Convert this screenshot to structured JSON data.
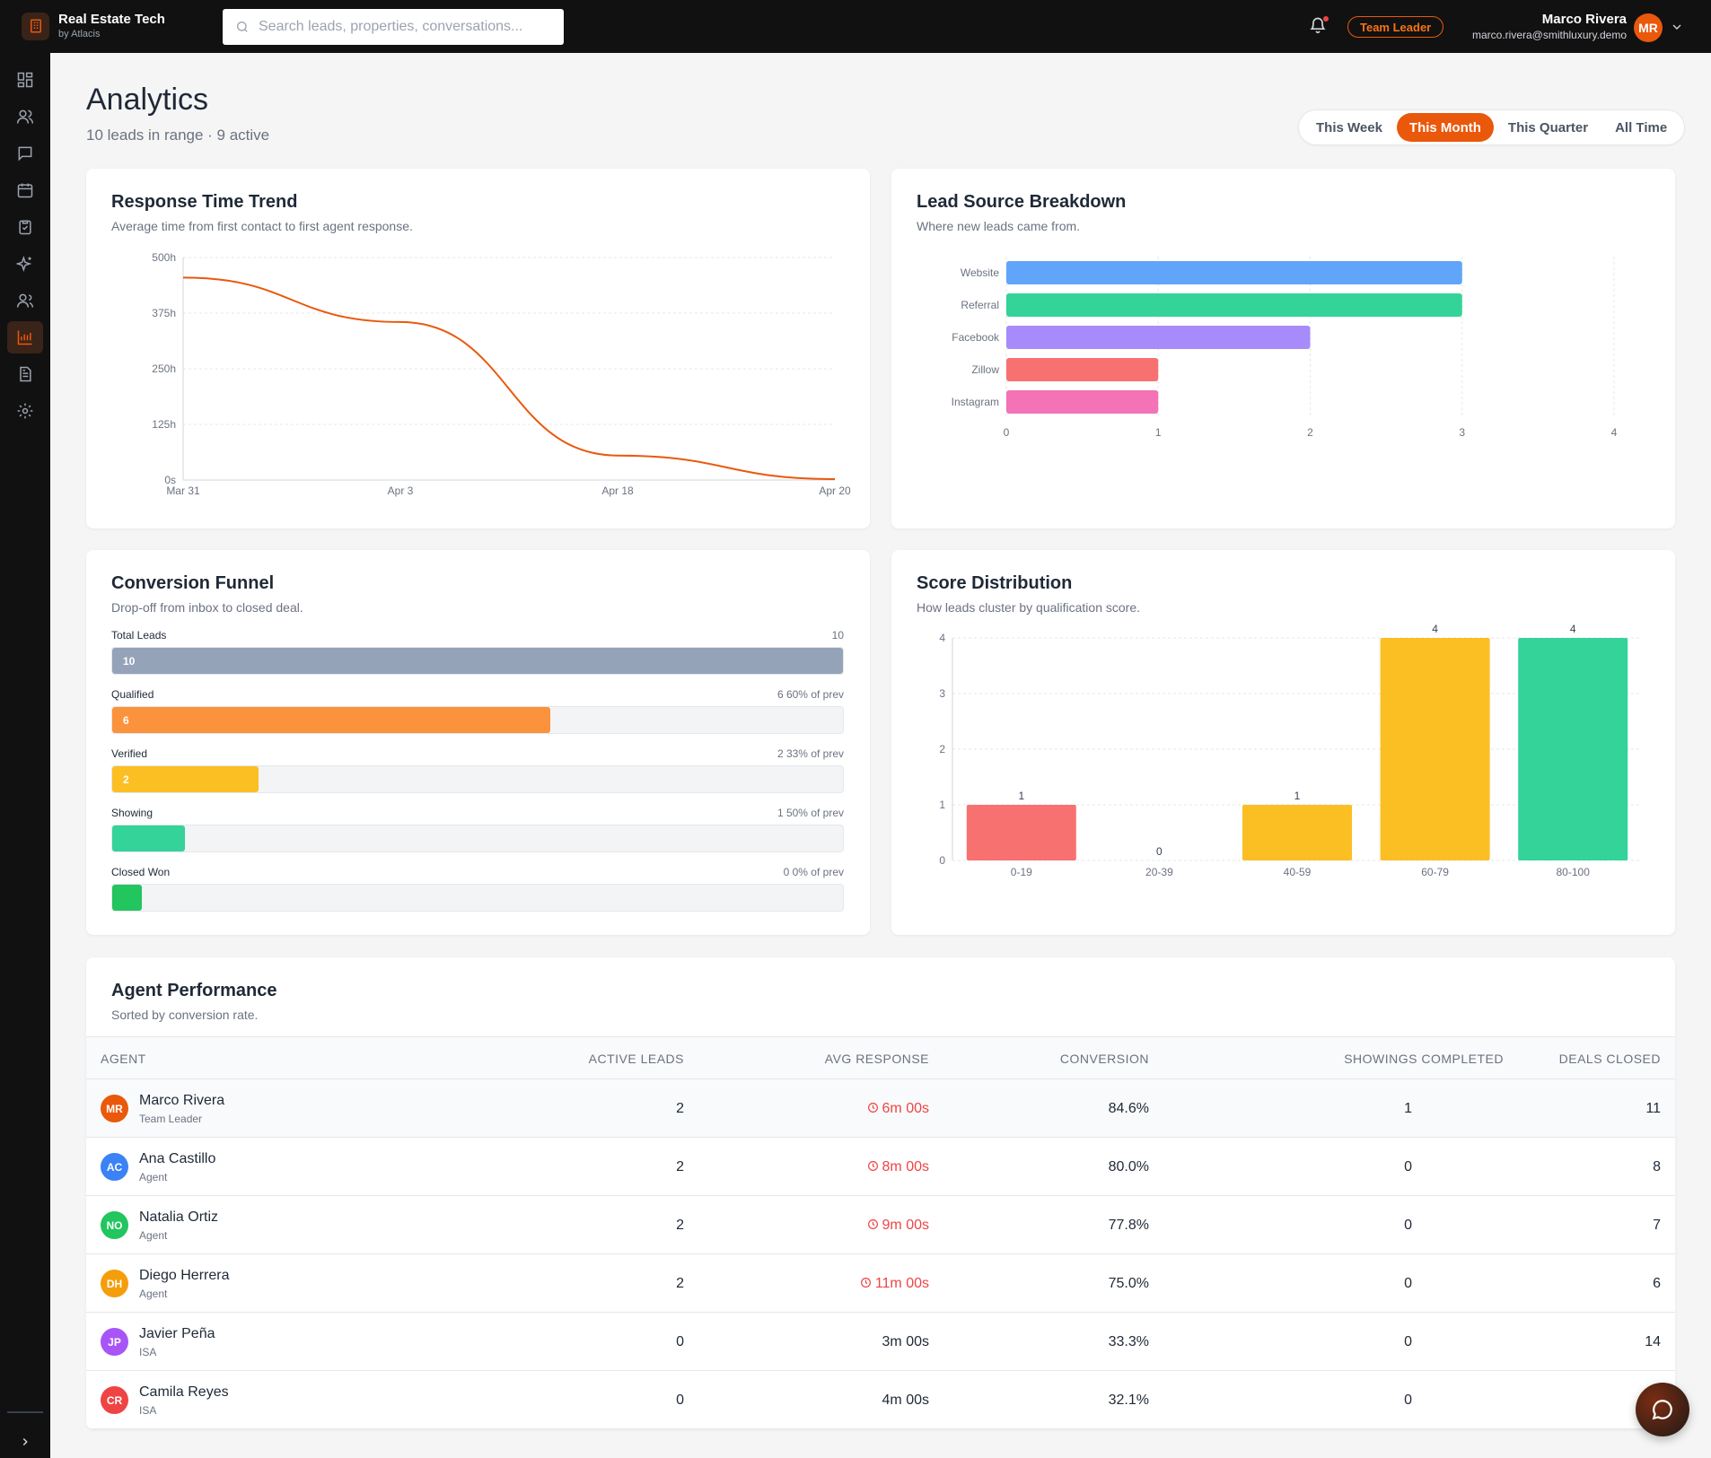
{
  "app": {
    "title": "Real Estate Tech",
    "subtitle": "by Atlacis",
    "search_placeholder": "Search leads, properties, conversations...",
    "role_badge": "Team Leader",
    "user_name": "Marco Rivera",
    "user_email": "marco.rivera@smithluxury.demo",
    "user_initials": "MR",
    "accent_color": "#ea580c"
  },
  "sidebar": {
    "items": [
      {
        "icon": "dashboard-icon",
        "active": false
      },
      {
        "icon": "users-icon",
        "active": false
      },
      {
        "icon": "chat-icon",
        "active": false
      },
      {
        "icon": "calendar-icon",
        "active": false
      },
      {
        "icon": "clipboard-check-icon",
        "active": false
      },
      {
        "icon": "sparkles-icon",
        "active": false
      },
      {
        "icon": "team-icon",
        "active": false
      },
      {
        "icon": "bar-chart-icon",
        "active": true
      },
      {
        "icon": "document-icon",
        "active": false
      },
      {
        "icon": "settings-icon",
        "active": false
      }
    ]
  },
  "page": {
    "title": "Analytics",
    "subtitle": "10 leads in range · 9 active",
    "ranges": [
      "This Week",
      "This Month",
      "This Quarter",
      "All Time"
    ],
    "selected_range": "This Month"
  },
  "cards": {
    "response_time": {
      "title": "Response Time Trend",
      "subtitle": "Average time from first contact to first agent response."
    },
    "lead_source": {
      "title": "Lead Source Breakdown",
      "subtitle": "Where new leads came from."
    },
    "funnel": {
      "title": "Conversion Funnel",
      "subtitle": "Drop-off from inbox to closed deal."
    },
    "score": {
      "title": "Score Distribution",
      "subtitle": "How leads cluster by qualification score."
    },
    "agents": {
      "title": "Agent Performance",
      "subtitle": "Sorted by conversion rate."
    }
  },
  "chart_data": [
    {
      "type": "line",
      "title": "Response Time Trend",
      "x": [
        "Mar 31",
        "Apr 3",
        "Apr 18",
        "Apr 20"
      ],
      "y_hours": [
        455,
        355,
        55,
        2
      ],
      "y_ticks": [
        "0s",
        "125h",
        "250h",
        "375h",
        "500h"
      ],
      "ylim": [
        0,
        500
      ],
      "color": "#ea580c",
      "grid": true
    },
    {
      "type": "bar",
      "orientation": "horizontal",
      "title": "Lead Source Breakdown",
      "categories": [
        "Website",
        "Referral",
        "Facebook",
        "Zillow",
        "Instagram"
      ],
      "values": [
        3,
        3,
        2,
        1,
        1
      ],
      "colors": [
        "#60a5fa",
        "#34d399",
        "#a78bfa",
        "#f87171",
        "#f472b6"
      ],
      "x_ticks": [
        "0",
        "1",
        "2",
        "3",
        "4"
      ],
      "xlim": [
        0,
        4
      ],
      "grid": true
    },
    {
      "type": "bar",
      "title": "Score Distribution",
      "categories": [
        "0-19",
        "20-39",
        "40-59",
        "60-79",
        "80-100"
      ],
      "values": [
        1,
        0,
        1,
        4,
        4
      ],
      "colors": [
        "#f87171",
        "#f87171",
        "#fbbf24",
        "#fbbf24",
        "#34d399"
      ],
      "y_ticks": [
        "0",
        "1",
        "2",
        "3",
        "4"
      ],
      "ylim": [
        0,
        4
      ],
      "grid": true
    }
  ],
  "funnel": [
    {
      "label": "Total Leads",
      "count": 10,
      "meta": "10",
      "bar_text": "10",
      "fraction": 1.0,
      "color": "#94a3b8"
    },
    {
      "label": "Qualified",
      "count": 6,
      "meta": "6  60% of prev",
      "bar_text": "6",
      "fraction": 0.6,
      "color": "#fb923c"
    },
    {
      "label": "Verified",
      "count": 2,
      "meta": "2  33% of prev",
      "bar_text": "2",
      "fraction": 0.2,
      "color": "#fbbf24"
    },
    {
      "label": "Showing",
      "count": 1,
      "meta": "1  50% of prev",
      "bar_text": "",
      "fraction": 0.1,
      "color": "#34d399"
    },
    {
      "label": "Closed Won",
      "count": 0,
      "meta": "0  0% of prev",
      "bar_text": "",
      "fraction": 0.04,
      "color": "#22c55e"
    }
  ],
  "agent_table": {
    "headers": [
      "AGENT",
      "ACTIVE LEADS",
      "AVG RESPONSE",
      "CONVERSION",
      "SHOWINGS COMPLETED",
      "DEALS CLOSED"
    ],
    "rows": [
      {
        "initials": "MR",
        "color": "#ea580c",
        "name": "Marco Rivera",
        "role": "Team Leader",
        "active": "2",
        "response": "6m 00s",
        "slow": true,
        "conversion": "84.6%",
        "showings": "1",
        "deals": "11"
      },
      {
        "initials": "AC",
        "color": "#3b82f6",
        "name": "Ana Castillo",
        "role": "Agent",
        "active": "2",
        "response": "8m 00s",
        "slow": true,
        "conversion": "80.0%",
        "showings": "0",
        "deals": "8"
      },
      {
        "initials": "NO",
        "color": "#22c55e",
        "name": "Natalia Ortiz",
        "role": "Agent",
        "active": "2",
        "response": "9m 00s",
        "slow": true,
        "conversion": "77.8%",
        "showings": "0",
        "deals": "7"
      },
      {
        "initials": "DH",
        "color": "#f59e0b",
        "name": "Diego Herrera",
        "role": "Agent",
        "active": "2",
        "response": "11m 00s",
        "slow": true,
        "conversion": "75.0%",
        "showings": "0",
        "deals": "6"
      },
      {
        "initials": "JP",
        "color": "#a855f7",
        "name": "Javier Peña",
        "role": "ISA",
        "active": "0",
        "response": "3m 00s",
        "slow": false,
        "conversion": "33.3%",
        "showings": "0",
        "deals": "14"
      },
      {
        "initials": "CR",
        "color": "#ef4444",
        "name": "Camila Reyes",
        "role": "ISA",
        "active": "0",
        "response": "4m 00s",
        "slow": false,
        "conversion": "32.1%",
        "showings": "0",
        "deals": ""
      }
    ]
  }
}
